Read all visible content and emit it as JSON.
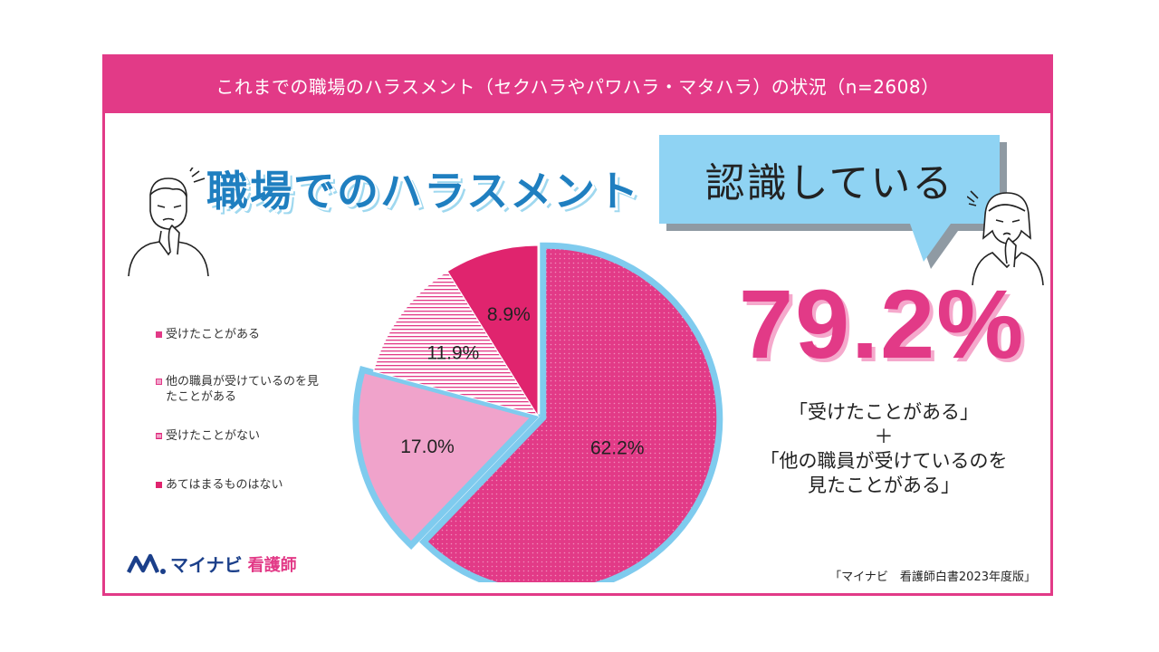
{
  "header": {
    "title": "これまでの職場のハラスメント（セクハラやパワハラ・マタハラ）の状況（n=2608）"
  },
  "headline": "職場でのハラスメント",
  "callout": {
    "text": "認識している"
  },
  "highlight": {
    "value": "79.2%",
    "line1": "「受けたことがある」",
    "plus": "＋",
    "line2": "「他の職員が受けているのを",
    "line3": "見たことがある」"
  },
  "legend": [
    {
      "label": "受けたことがある"
    },
    {
      "label": "他の職員が受けているのを見たことがある"
    },
    {
      "label": "受けたことがない"
    },
    {
      "label": "あてはまるものはない"
    }
  ],
  "logo": {
    "brand": "マイナビ",
    "sub": "看護師"
  },
  "source": "「マイナビ　看護師白書2023年度版」",
  "colors": {
    "accent": "#e23a87",
    "light_blue": "#7fcbee",
    "received": "#e23a87",
    "witnessed": "#f0a3cb",
    "not_received": "#ffffff",
    "none": "#e0246e"
  },
  "chart_data": {
    "type": "pie",
    "slices": [
      {
        "name": "受けたことがある",
        "value": 62.2,
        "label": "62.2%"
      },
      {
        "name": "他の職員が受けているのを見たことがある",
        "value": 17.0,
        "label": "17.0%"
      },
      {
        "name": "受けたことがない",
        "value": 11.9,
        "label": "11.9%"
      },
      {
        "name": "あてはまるものはない",
        "value": 8.9,
        "label": "8.9%"
      }
    ],
    "start_angle": "12 o'clock",
    "direction": "clockwise",
    "highlighted_slices": [
      "受けたことがある",
      "他の職員が受けているのを見たことがある"
    ],
    "legend_position": "left"
  }
}
